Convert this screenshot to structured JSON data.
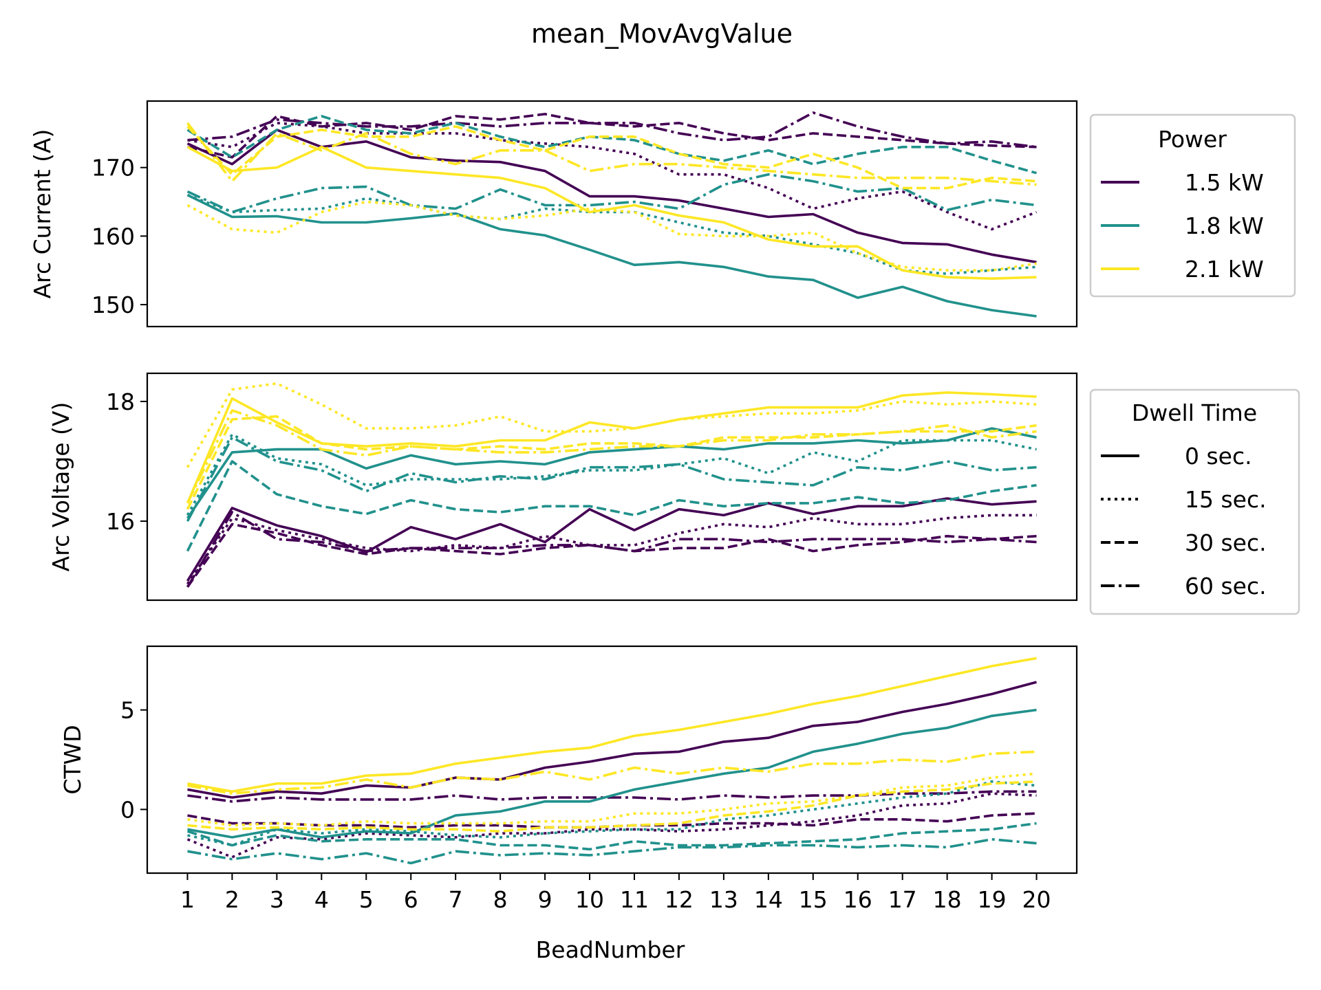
{
  "figure": {
    "title": "mean_MovAvgValue"
  },
  "legends": {
    "power": {
      "title": "Power",
      "items": [
        {
          "label": "1.5 kW",
          "color": "#440154"
        },
        {
          "label": "1.8 kW",
          "color": "#21918c"
        },
        {
          "label": "2.1 kW",
          "color": "#fde725"
        }
      ]
    },
    "dwell": {
      "title": "Dwell Time",
      "items": [
        {
          "label": "0 sec.",
          "dash": "solid"
        },
        {
          "label": "15 sec.",
          "dash": "dotted"
        },
        {
          "label": "30 sec.",
          "dash": "dashed"
        },
        {
          "label": "60 sec.",
          "dash": "dashdot"
        }
      ]
    }
  },
  "chart_data": [
    {
      "type": "line",
      "ylabel": "Arc Current (A)",
      "xlabel": "",
      "x": [
        1,
        2,
        3,
        4,
        5,
        6,
        7,
        8,
        9,
        10,
        11,
        12,
        13,
        14,
        15,
        16,
        17,
        18,
        19,
        20
      ],
      "xlim": [
        0.1,
        20.9
      ],
      "ylim": [
        146.8,
        179.7
      ],
      "yticks": [
        150,
        160,
        170
      ],
      "series": [
        {
          "power": "1.5 kW",
          "dwell": "0 sec.",
          "values": [
            173.5,
            170.5,
            175.5,
            173.0,
            173.8,
            171.5,
            171.0,
            170.8,
            169.5,
            165.8,
            165.8,
            165.2,
            164.0,
            162.8,
            163.2,
            160.5,
            159.0,
            158.8,
            157.3,
            156.2
          ]
        },
        {
          "power": "1.5 kW",
          "dwell": "15 sec.",
          "values": [
            174.0,
            173.0,
            176.5,
            176.0,
            175.0,
            175.0,
            175.0,
            174.0,
            173.5,
            173.0,
            172.0,
            169.0,
            169.0,
            167.0,
            164.0,
            165.5,
            166.5,
            163.5,
            161.0,
            163.5
          ]
        },
        {
          "power": "1.5 kW",
          "dwell": "30 sec.",
          "values": [
            173.0,
            171.5,
            177.5,
            176.0,
            176.5,
            175.5,
            177.5,
            177.0,
            177.8,
            176.5,
            176.0,
            176.5,
            175.0,
            174.0,
            175.0,
            174.5,
            174.0,
            173.5,
            173.2,
            173.0
          ]
        },
        {
          "power": "1.5 kW",
          "dwell": "60 sec.",
          "values": [
            174.0,
            174.5,
            177.0,
            176.5,
            176.0,
            176.0,
            176.5,
            176.0,
            176.5,
            176.5,
            176.5,
            175.0,
            174.0,
            174.5,
            178.0,
            176.0,
            174.5,
            173.5,
            173.8,
            173.0
          ]
        },
        {
          "power": "1.8 kW",
          "dwell": "0 sec.",
          "values": [
            166.0,
            162.8,
            162.9,
            162.0,
            162.0,
            162.6,
            163.3,
            161.0,
            160.1,
            158.0,
            155.8,
            156.2,
            155.5,
            154.1,
            153.6,
            151.0,
            152.6,
            150.5,
            149.2,
            148.3
          ]
        },
        {
          "power": "1.8 kW",
          "dwell": "15 sec.",
          "values": [
            166.0,
            163.5,
            163.8,
            164.0,
            165.5,
            164.5,
            163.0,
            162.5,
            164.0,
            163.5,
            163.5,
            162.0,
            160.5,
            160.0,
            158.8,
            157.5,
            155.0,
            154.5,
            155.0,
            155.5
          ]
        },
        {
          "power": "1.8 kW",
          "dwell": "30 sec.",
          "values": [
            175.5,
            171.5,
            175.5,
            177.5,
            175.5,
            175.0,
            176.5,
            174.5,
            173.0,
            174.5,
            174.0,
            172.0,
            171.0,
            172.5,
            170.5,
            172.0,
            173.0,
            173.0,
            171.0,
            169.2
          ]
        },
        {
          "power": "1.8 kW",
          "dwell": "60 sec.",
          "values": [
            166.5,
            163.5,
            165.5,
            167.0,
            167.2,
            164.5,
            164.0,
            166.8,
            164.5,
            164.5,
            165.0,
            164.0,
            167.5,
            169.0,
            168.0,
            166.5,
            167.0,
            163.8,
            165.3,
            164.5
          ]
        },
        {
          "power": "2.1 kW",
          "dwell": "0 sec.",
          "values": [
            173.0,
            169.5,
            170.0,
            173.0,
            170.0,
            169.5,
            169.0,
            168.5,
            167.0,
            163.5,
            164.5,
            163.0,
            162.0,
            159.5,
            158.5,
            158.5,
            155.0,
            154.0,
            153.8,
            154.0
          ]
        },
        {
          "power": "2.1 kW",
          "dwell": "15 sec.",
          "values": [
            164.5,
            161.0,
            160.5,
            163.5,
            165.0,
            164.5,
            163.0,
            162.5,
            163.0,
            164.0,
            163.5,
            160.3,
            160.0,
            160.0,
            160.5,
            157.5,
            155.5,
            155.0,
            155.0,
            156.0
          ]
        },
        {
          "power": "2.1 kW",
          "dwell": "30 sec.",
          "values": [
            176.0,
            169.0,
            174.5,
            175.5,
            174.5,
            174.5,
            176.0,
            174.0,
            172.5,
            174.5,
            174.5,
            172.0,
            170.5,
            170.0,
            172.0,
            170.0,
            167.0,
            167.0,
            168.5,
            168.0
          ]
        },
        {
          "power": "2.1 kW",
          "dwell": "60 sec.",
          "values": [
            176.5,
            168.0,
            175.0,
            172.5,
            175.0,
            172.0,
            170.5,
            172.5,
            172.5,
            169.5,
            170.5,
            170.5,
            170.0,
            169.5,
            169.0,
            168.5,
            168.5,
            168.5,
            168.0,
            167.5
          ]
        }
      ]
    },
    {
      "type": "line",
      "ylabel": "Arc Voltage (V)",
      "xlabel": "",
      "x": [
        1,
        2,
        3,
        4,
        5,
        6,
        7,
        8,
        9,
        10,
        11,
        12,
        13,
        14,
        15,
        16,
        17,
        18,
        19,
        20
      ],
      "xlim": [
        0.1,
        20.9
      ],
      "ylim": [
        14.68,
        18.47
      ],
      "yticks": [
        16,
        18
      ],
      "series": [
        {
          "power": "1.5 kW",
          "dwell": "0 sec.",
          "values": [
            15.0,
            16.22,
            15.93,
            15.75,
            15.48,
            15.9,
            15.7,
            15.95,
            15.65,
            16.2,
            15.85,
            16.2,
            16.1,
            16.3,
            16.12,
            16.25,
            16.25,
            16.38,
            16.28,
            16.33
          ]
        },
        {
          "power": "1.5 kW",
          "dwell": "15 sec.",
          "values": [
            14.95,
            16.05,
            15.85,
            15.7,
            15.55,
            15.5,
            15.6,
            15.55,
            15.75,
            15.6,
            15.6,
            15.8,
            15.95,
            15.9,
            16.05,
            15.95,
            15.95,
            16.05,
            16.1,
            16.1
          ]
        },
        {
          "power": "1.5 kW",
          "dwell": "30 sec.",
          "values": [
            14.9,
            15.95,
            15.8,
            15.6,
            15.45,
            15.55,
            15.5,
            15.45,
            15.55,
            15.6,
            15.5,
            15.55,
            15.55,
            15.7,
            15.5,
            15.6,
            15.65,
            15.75,
            15.7,
            15.75
          ]
        },
        {
          "power": "1.5 kW",
          "dwell": "60 sec.",
          "values": [
            14.9,
            16.15,
            15.7,
            15.65,
            15.5,
            15.55,
            15.55,
            15.55,
            15.6,
            15.6,
            15.5,
            15.7,
            15.7,
            15.65,
            15.7,
            15.7,
            15.7,
            15.65,
            15.7,
            15.65
          ]
        },
        {
          "power": "1.8 kW",
          "dwell": "0 sec.",
          "values": [
            16.05,
            17.15,
            17.2,
            17.2,
            16.88,
            17.1,
            16.95,
            17.0,
            16.95,
            17.15,
            17.2,
            17.25,
            17.2,
            17.3,
            17.3,
            17.35,
            17.3,
            17.35,
            17.55,
            17.4
          ]
        },
        {
          "power": "1.8 kW",
          "dwell": "15 sec.",
          "values": [
            16.1,
            17.45,
            17.05,
            16.95,
            16.6,
            16.7,
            16.7,
            16.7,
            16.75,
            16.85,
            16.85,
            16.95,
            17.05,
            16.8,
            17.15,
            17.0,
            17.35,
            17.35,
            17.35,
            17.2
          ]
        },
        {
          "power": "1.8 kW",
          "dwell": "30 sec.",
          "values": [
            15.5,
            17.0,
            16.45,
            16.25,
            16.12,
            16.35,
            16.2,
            16.15,
            16.25,
            16.25,
            16.1,
            16.35,
            16.25,
            16.3,
            16.3,
            16.4,
            16.3,
            16.35,
            16.5,
            16.6
          ]
        },
        {
          "power": "1.8 kW",
          "dwell": "60 sec.",
          "values": [
            16.0,
            17.4,
            17.0,
            16.85,
            16.5,
            16.8,
            16.65,
            16.75,
            16.7,
            16.9,
            16.9,
            16.95,
            16.7,
            16.65,
            16.6,
            16.9,
            16.85,
            17.0,
            16.85,
            16.9
          ]
        },
        {
          "power": "2.1 kW",
          "dwell": "0 sec.",
          "values": [
            16.3,
            18.05,
            17.65,
            17.3,
            17.25,
            17.3,
            17.25,
            17.35,
            17.35,
            17.65,
            17.55,
            17.7,
            17.8,
            17.9,
            17.9,
            17.9,
            18.1,
            18.15,
            18.12,
            18.08
          ]
        },
        {
          "power": "2.1 kW",
          "dwell": "15 sec.",
          "values": [
            16.9,
            18.2,
            18.3,
            17.95,
            17.55,
            17.55,
            17.6,
            17.75,
            17.5,
            17.5,
            17.55,
            17.7,
            17.75,
            17.8,
            17.8,
            17.85,
            18.0,
            17.95,
            18.0,
            17.95
          ]
        },
        {
          "power": "2.1 kW",
          "dwell": "30 sec.",
          "values": [
            16.2,
            17.7,
            17.75,
            17.3,
            17.2,
            17.25,
            17.2,
            17.25,
            17.2,
            17.3,
            17.3,
            17.25,
            17.4,
            17.4,
            17.4,
            17.45,
            17.5,
            17.5,
            17.5,
            17.6
          ]
        },
        {
          "power": "2.1 kW",
          "dwell": "60 sec.",
          "values": [
            16.3,
            17.85,
            17.6,
            17.2,
            17.1,
            17.25,
            17.2,
            17.15,
            17.15,
            17.2,
            17.25,
            17.25,
            17.35,
            17.35,
            17.45,
            17.45,
            17.5,
            17.6,
            17.4,
            17.5
          ]
        }
      ]
    },
    {
      "type": "line",
      "ylabel": "CTWD",
      "xlabel": "BeadNumber",
      "x": [
        1,
        2,
        3,
        4,
        5,
        6,
        7,
        8,
        9,
        10,
        11,
        12,
        13,
        14,
        15,
        16,
        17,
        18,
        19,
        20
      ],
      "xticks": [
        "1",
        "2",
        "3",
        "4",
        "5",
        "6",
        "7",
        "8",
        "9",
        "10",
        "11",
        "12",
        "13",
        "14",
        "15",
        "16",
        "17",
        "18",
        "19",
        "20"
      ],
      "xlim": [
        0.1,
        20.9
      ],
      "ylim": [
        -3.2,
        8.2
      ],
      "yticks": [
        0,
        5
      ],
      "series": [
        {
          "power": "1.5 kW",
          "dwell": "0 sec.",
          "values": [
            1.0,
            0.6,
            0.9,
            0.8,
            1.2,
            1.1,
            1.6,
            1.5,
            2.1,
            2.4,
            2.8,
            2.9,
            3.4,
            3.6,
            4.2,
            4.4,
            4.9,
            5.3,
            5.8,
            6.4
          ]
        },
        {
          "power": "1.5 kW",
          "dwell": "15 sec.",
          "values": [
            -1.5,
            -2.4,
            -1.4,
            -1.5,
            -1.2,
            -1.3,
            -1.4,
            -1.2,
            -1.2,
            -1.0,
            -1.0,
            -1.1,
            -1.0,
            -0.8,
            -0.6,
            -0.3,
            0.2,
            0.3,
            0.8,
            0.7
          ]
        },
        {
          "power": "1.5 kW",
          "dwell": "30 sec.",
          "values": [
            -0.3,
            -0.7,
            -0.7,
            -0.8,
            -0.8,
            -0.9,
            -0.8,
            -0.8,
            -0.9,
            -0.9,
            -0.8,
            -0.8,
            -0.7,
            -0.7,
            -0.8,
            -0.5,
            -0.5,
            -0.6,
            -0.3,
            -0.2
          ]
        },
        {
          "power": "1.5 kW",
          "dwell": "60 sec.",
          "values": [
            0.7,
            0.4,
            0.6,
            0.5,
            0.5,
            0.5,
            0.7,
            0.5,
            0.6,
            0.6,
            0.6,
            0.5,
            0.7,
            0.6,
            0.7,
            0.7,
            0.8,
            0.8,
            0.9,
            0.9
          ]
        },
        {
          "power": "1.8 kW",
          "dwell": "0 sec.",
          "values": [
            -1.0,
            -1.4,
            -1.0,
            -1.4,
            -1.1,
            -1.2,
            -0.3,
            -0.1,
            0.4,
            0.4,
            1.0,
            1.4,
            1.8,
            2.1,
            2.9,
            3.3,
            3.8,
            4.1,
            4.7,
            5.0
          ]
        },
        {
          "power": "1.8 kW",
          "dwell": "15 sec.",
          "values": [
            -1.3,
            -1.8,
            -1.0,
            -1.2,
            -1.0,
            -1.1,
            -1.3,
            -1.4,
            -1.2,
            -1.1,
            -1.0,
            -1.0,
            -0.5,
            -0.3,
            0.0,
            0.3,
            0.6,
            0.8,
            1.4,
            1.2
          ]
        },
        {
          "power": "1.8 kW",
          "dwell": "30 sec.",
          "values": [
            -1.1,
            -1.8,
            -1.3,
            -1.6,
            -1.5,
            -1.5,
            -1.5,
            -1.8,
            -1.8,
            -2.0,
            -1.6,
            -1.8,
            -1.8,
            -1.7,
            -1.6,
            -1.5,
            -1.2,
            -1.1,
            -1.0,
            -0.7
          ]
        },
        {
          "power": "1.8 kW",
          "dwell": "60 sec.",
          "values": [
            -2.1,
            -2.5,
            -2.2,
            -2.5,
            -2.2,
            -2.7,
            -2.1,
            -2.3,
            -2.2,
            -2.3,
            -2.1,
            -1.9,
            -1.9,
            -1.8,
            -1.8,
            -1.9,
            -1.8,
            -1.9,
            -1.5,
            -1.7
          ]
        },
        {
          "power": "2.1 kW",
          "dwell": "0 sec.",
          "values": [
            1.3,
            0.9,
            1.3,
            1.3,
            1.7,
            1.8,
            2.3,
            2.6,
            2.9,
            3.1,
            3.7,
            4.0,
            4.4,
            4.8,
            5.3,
            5.7,
            6.2,
            6.7,
            7.2,
            7.6
          ]
        },
        {
          "power": "2.1 kW",
          "dwell": "15 sec.",
          "values": [
            -0.5,
            -0.8,
            -0.7,
            -0.8,
            -0.6,
            -0.7,
            -0.7,
            -0.7,
            -0.6,
            -0.6,
            -0.2,
            -0.2,
            0.0,
            0.3,
            0.4,
            0.7,
            1.1,
            1.2,
            1.6,
            1.8
          ]
        },
        {
          "power": "2.1 kW",
          "dwell": "30 sec.",
          "values": [
            -0.8,
            -1.0,
            -0.9,
            -1.0,
            -0.9,
            -1.0,
            -1.0,
            -1.1,
            -0.9,
            -0.9,
            -0.8,
            -0.7,
            -0.3,
            -0.1,
            0.2,
            0.7,
            0.9,
            1.0,
            1.3,
            1.4
          ]
        },
        {
          "power": "2.1 kW",
          "dwell": "60 sec.",
          "values": [
            1.2,
            0.8,
            1.0,
            1.1,
            1.5,
            1.1,
            1.6,
            1.5,
            1.9,
            1.5,
            2.1,
            1.8,
            2.1,
            1.9,
            2.3,
            2.3,
            2.5,
            2.4,
            2.8,
            2.9
          ]
        }
      ]
    }
  ]
}
